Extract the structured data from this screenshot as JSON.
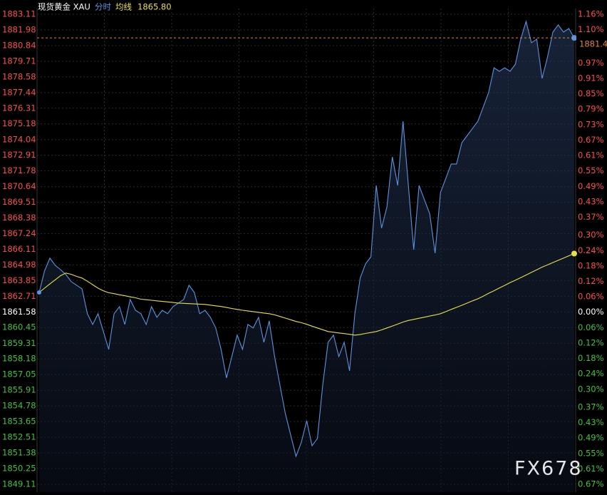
{
  "chart_data": {
    "type": "line",
    "title": "现货黄金 XAU",
    "mode": "分时",
    "ma_value_label": "1865.80",
    "watermark": "FX678",
    "up_color": "#ff4d4d",
    "down_color": "#3fc43f",
    "flat_color": "#ffffff",
    "grid": true,
    "ylim": [
      1849.11,
      1883.11
    ],
    "yticks": [
      1883.11,
      1881.98,
      1880.84,
      1879.71,
      1878.58,
      1877.44,
      1876.31,
      1875.18,
      1874.04,
      1872.91,
      1871.78,
      1870.64,
      1869.51,
      1868.38,
      1867.24,
      1866.11,
      1864.98,
      1863.85,
      1862.71,
      1861.58,
      1860.45,
      1859.31,
      1858.18,
      1857.05,
      1855.91,
      1854.78,
      1853.65,
      1852.51,
      1851.38,
      1850.25,
      1849.11
    ],
    "y2lim": [
      -0.67,
      1.16
    ],
    "y2ticks": [
      {
        "value": 1.16,
        "label": "1.16%"
      },
      {
        "value": 1.1,
        "label": "1.10%"
      },
      {
        "value": 0.97,
        "label": "0.97%"
      },
      {
        "value": 0.91,
        "label": "0.91%"
      },
      {
        "value": 0.85,
        "label": "0.85%"
      },
      {
        "value": 0.79,
        "label": "0.79%"
      },
      {
        "value": 0.73,
        "label": "0.73%"
      },
      {
        "value": 0.67,
        "label": "0.67%"
      },
      {
        "value": 0.61,
        "label": "0.61%"
      },
      {
        "value": 0.55,
        "label": "0.55%"
      },
      {
        "value": 0.49,
        "label": "0.49%"
      },
      {
        "value": 0.43,
        "label": "0.43%"
      },
      {
        "value": 0.37,
        "label": "0.37%"
      },
      {
        "value": 0.3,
        "label": "0.30%"
      },
      {
        "value": 0.24,
        "label": "0.24%"
      },
      {
        "value": 0.18,
        "label": "0.18%"
      },
      {
        "value": 0.12,
        "label": "0.12%"
      },
      {
        "value": 0.06,
        "label": "0.06%"
      },
      {
        "value": 0,
        "label": "0.00%"
      },
      {
        "value": -0.06,
        "label": "0.06%"
      },
      {
        "value": -0.12,
        "label": "0.12%"
      },
      {
        "value": -0.18,
        "label": "0.18%"
      },
      {
        "value": -0.24,
        "label": "0.24%"
      },
      {
        "value": -0.3,
        "label": "0.30%"
      },
      {
        "value": -0.37,
        "label": "0.37%"
      },
      {
        "value": -0.43,
        "label": "0.43%"
      },
      {
        "value": -0.49,
        "label": "0.49%"
      },
      {
        "value": -0.55,
        "label": "0.55%"
      },
      {
        "value": -0.61,
        "label": "0.61%"
      },
      {
        "value": -0.67,
        "label": "0.67%"
      }
    ],
    "series": [
      {
        "color": "#5d93e0",
        "values": [
          1862.99,
          1864.54,
          1865.47,
          1864.95,
          1864.64,
          1864.28,
          1863.77,
          1863.51,
          1863.25,
          1861.45,
          1860.67,
          1861.45,
          1860.16,
          1858.87,
          1861.45,
          1861.96,
          1860.67,
          1862.48,
          1861.7,
          1861.45,
          1860.67,
          1861.96,
          1861.19,
          1861.7,
          1861.45,
          1861.96,
          1862.22,
          1862.48,
          1863.51,
          1862.99,
          1861.45,
          1861.7,
          1861.19,
          1860.42,
          1858.87,
          1856.8,
          1858.35,
          1859.9,
          1858.87,
          1860.67,
          1860.42,
          1861.19,
          1859.38,
          1860.93,
          1858.35,
          1856.29,
          1854.23,
          1852.68,
          1851.13,
          1852.16,
          1853.71,
          1851.9,
          1852.42,
          1856.29,
          1859.38,
          1859.9,
          1858.35,
          1859.38,
          1857.32,
          1861.45,
          1864.03,
          1865.06,
          1865.57,
          1870.73,
          1867.64,
          1869.18,
          1872.79,
          1870.73,
          1875.37,
          1870.73,
          1866.09,
          1870.73,
          1869.7,
          1868.67,
          1865.83,
          1870.22,
          1871.25,
          1872.28,
          1872.28,
          1873.83,
          1874.34,
          1874.86,
          1875.37,
          1876.41,
          1877.44,
          1879.24,
          1878.98,
          1879.24,
          1878.98,
          1879.5,
          1881.31,
          1882.59,
          1881.05,
          1881.31,
          1878.47,
          1880.02,
          1881.82,
          1882.34,
          1881.82,
          1882.08,
          1881.4
        ]
      },
      {
        "name": "均线",
        "color": "#e8e04a",
        "values": [
          1862.99,
          1863.3,
          1863.6,
          1863.9,
          1864.2,
          1864.39,
          1864.3,
          1864.15,
          1864.03,
          1863.8,
          1863.55,
          1863.3,
          1863.1,
          1862.97,
          1862.9,
          1862.82,
          1862.75,
          1862.67,
          1862.6,
          1862.5,
          1862.46,
          1862.42,
          1862.38,
          1862.34,
          1862.3,
          1862.26,
          1862.22,
          1862.2,
          1862.18,
          1862.16,
          1862.14,
          1862.12,
          1862.07,
          1862.02,
          1861.97,
          1861.9,
          1861.83,
          1861.76,
          1861.7,
          1861.65,
          1861.6,
          1861.55,
          1861.5,
          1861.45,
          1861.37,
          1861.25,
          1861.13,
          1861.01,
          1860.89,
          1860.8,
          1860.68,
          1860.55,
          1860.42,
          1860.29,
          1860.16,
          1860.11,
          1860.06,
          1860.01,
          1859.96,
          1859.9,
          1859.95,
          1860.02,
          1860.09,
          1860.16,
          1860.28,
          1860.42,
          1860.56,
          1860.7,
          1860.85,
          1860.96,
          1861.04,
          1861.12,
          1861.2,
          1861.28,
          1861.36,
          1861.45,
          1861.6,
          1861.76,
          1861.91,
          1862.06,
          1862.22,
          1862.38,
          1862.53,
          1862.72,
          1862.92,
          1863.11,
          1863.31,
          1863.5,
          1863.7,
          1863.87,
          1864.06,
          1864.25,
          1864.44,
          1864.63,
          1864.82,
          1864.98,
          1865.15,
          1865.31,
          1865.47,
          1865.64,
          1865.8
        ]
      }
    ]
  }
}
